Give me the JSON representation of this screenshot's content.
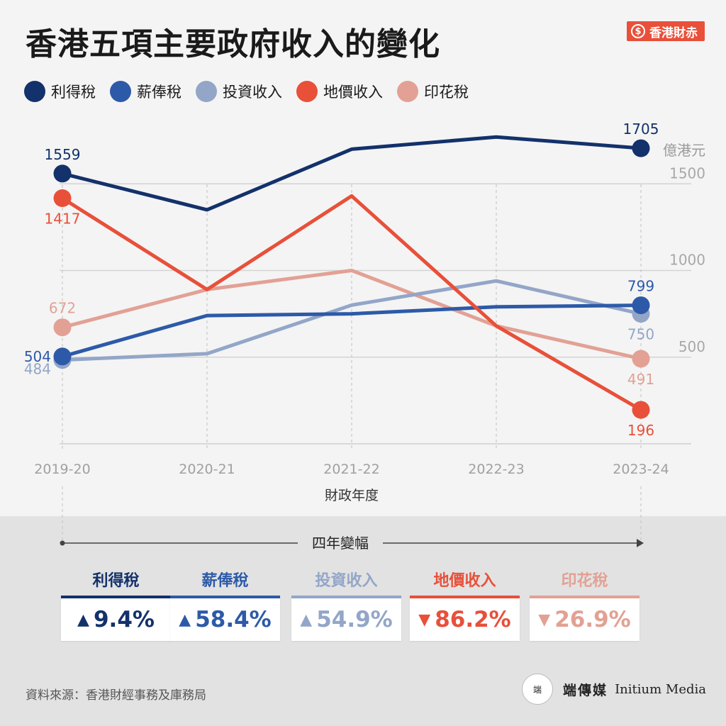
{
  "title": "香港五項主要政府收入的變化",
  "brand": {
    "symbol": "$",
    "label": "香港財赤"
  },
  "chart_data": {
    "type": "line",
    "categories": [
      "2019-20",
      "2020-21",
      "2021-22",
      "2022-23",
      "2023-24"
    ],
    "xlabel": "財政年度",
    "unit": "億港元",
    "yticks": [
      500,
      1000,
      1500
    ],
    "ylim": [
      0,
      1800
    ],
    "grid": true,
    "legend_position": "top-left",
    "series": [
      {
        "name": "利得稅",
        "color": "#13316b",
        "values": [
          1559,
          1350,
          1700,
          1770,
          1705
        ]
      },
      {
        "name": "薪俸稅",
        "color": "#2d5aa8",
        "values": [
          504,
          740,
          750,
          790,
          799
        ]
      },
      {
        "name": "投資收入",
        "color": "#93a6c8",
        "values": [
          484,
          520,
          800,
          940,
          750
        ]
      },
      {
        "name": "地價收入",
        "color": "#e8503a",
        "values": [
          1417,
          890,
          1430,
          680,
          196
        ]
      },
      {
        "name": "印花稅",
        "color": "#e2a194",
        "values": [
          672,
          890,
          1000,
          680,
          491
        ]
      }
    ],
    "point_labels": [
      {
        "series": 0,
        "index": 0,
        "text": "1559",
        "pos": "above"
      },
      {
        "series": 0,
        "index": 4,
        "text": "1705",
        "pos": "above"
      },
      {
        "series": 3,
        "index": 0,
        "text": "1417",
        "pos": "below"
      },
      {
        "series": 3,
        "index": 4,
        "text": "196",
        "pos": "below"
      },
      {
        "series": 4,
        "index": 0,
        "text": "672",
        "pos": "above"
      },
      {
        "series": 4,
        "index": 4,
        "text": "491",
        "pos": "below"
      },
      {
        "series": 1,
        "index": 0,
        "text": "504",
        "pos": "left"
      },
      {
        "series": 1,
        "index": 4,
        "text": "799",
        "pos": "above"
      },
      {
        "series": 2,
        "index": 0,
        "text": "484",
        "pos": "belowleft"
      },
      {
        "series": 2,
        "index": 4,
        "text": "750",
        "pos": "below"
      }
    ]
  },
  "change_section": {
    "label": "四年變幅",
    "items": [
      {
        "name": "利得稅",
        "color": "#13316b",
        "direction": "up",
        "arrow": "▲",
        "value": "9.4%"
      },
      {
        "name": "薪俸稅",
        "color": "#2d5aa8",
        "direction": "up",
        "arrow": "▲",
        "value": "58.4%"
      },
      {
        "name": "投資收入",
        "color": "#93a6c8",
        "direction": "up",
        "arrow": "▲",
        "value": "54.9%"
      },
      {
        "name": "地價收入",
        "color": "#e8503a",
        "direction": "down",
        "arrow": "▼",
        "value": "86.2%"
      },
      {
        "name": "印花稅",
        "color": "#e2a194",
        "direction": "down",
        "arrow": "▼",
        "value": "26.9%"
      }
    ]
  },
  "source": "資料來源：香港財經事務及庫務局",
  "logo": {
    "mark": "端",
    "cn": "端傳媒",
    "en": "Initium Media"
  }
}
